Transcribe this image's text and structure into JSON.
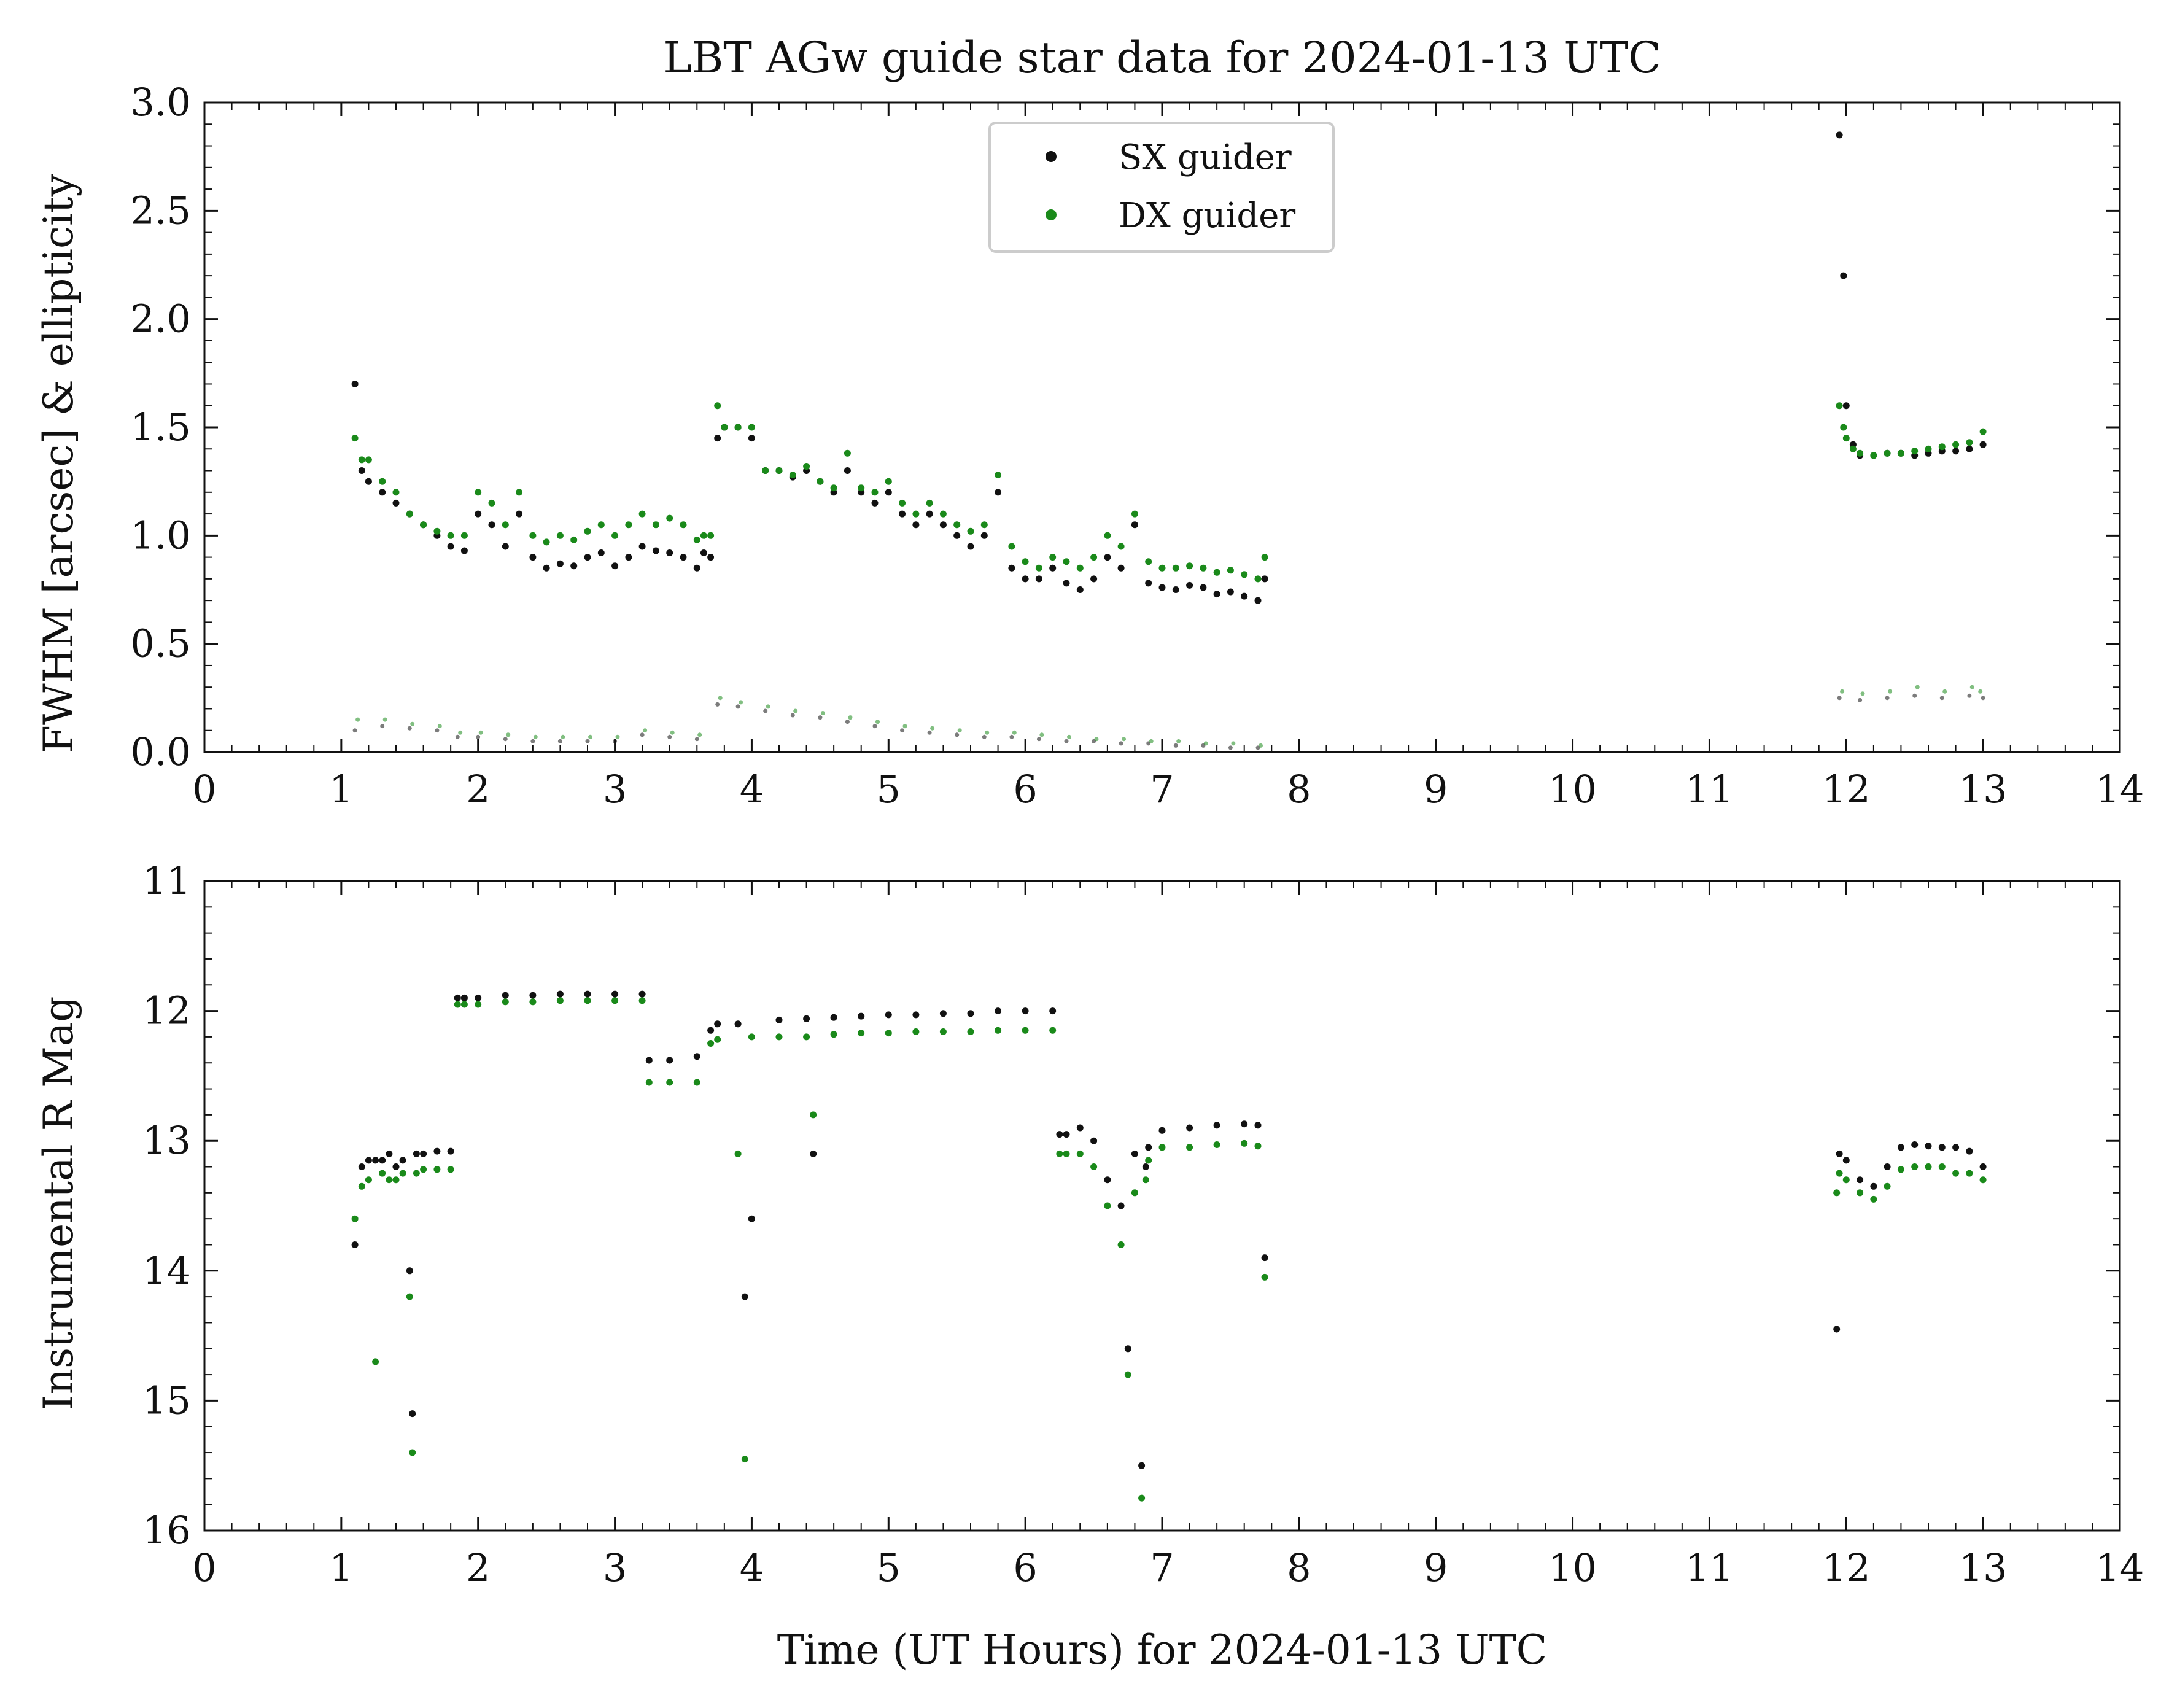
{
  "title": "LBT AGw guide star data for 2024-01-13 UTC",
  "xlabel": "Time (UT Hours) for 2024-01-13 UTC",
  "colors": {
    "sx": "#111111",
    "dx": "#1a8a1a",
    "axis": "#111111"
  },
  "legend": {
    "placement": "top-center",
    "items": [
      "SX guider",
      "DX guider"
    ]
  },
  "chart_data": [
    {
      "type": "scatter",
      "ylabel": "FWHM [arcsec] & ellipticity",
      "xlim": [
        0,
        14
      ],
      "ylim": [
        0,
        3.0
      ],
      "y_inverted": false,
      "xticks": [
        "0",
        "1",
        "2",
        "3",
        "4",
        "5",
        "6",
        "7",
        "8",
        "9",
        "10",
        "11",
        "12",
        "13",
        "14"
      ],
      "yticks": [
        "0.0",
        "0.5",
        "1.0",
        "1.5",
        "2.0",
        "2.5",
        "3.0"
      ],
      "series": [
        {
          "name": "SX guider",
          "key": "sx",
          "quantity": "fwhm",
          "x": [
            1.1,
            1.15,
            1.2,
            1.3,
            1.4,
            1.5,
            1.6,
            1.7,
            1.8,
            1.9,
            2.0,
            2.1,
            2.2,
            2.3,
            2.4,
            2.5,
            2.6,
            2.7,
            2.8,
            2.9,
            3.0,
            3.1,
            3.2,
            3.3,
            3.4,
            3.5,
            3.6,
            3.65,
            3.7,
            3.75,
            3.8,
            3.9,
            4.0,
            4.1,
            4.2,
            4.3,
            4.4,
            4.5,
            4.6,
            4.7,
            4.8,
            4.9,
            5.0,
            5.1,
            5.2,
            5.3,
            5.4,
            5.5,
            5.6,
            5.7,
            5.8,
            5.9,
            6.0,
            6.1,
            6.2,
            6.3,
            6.4,
            6.5,
            6.6,
            6.7,
            6.8,
            6.9,
            7.0,
            7.1,
            7.2,
            7.3,
            7.4,
            7.5,
            7.6,
            7.7,
            7.75,
            11.95,
            11.98,
            12.0,
            12.05,
            12.1,
            12.2,
            12.3,
            12.4,
            12.5,
            12.6,
            12.7,
            12.8,
            12.9,
            13.0
          ],
          "y": [
            1.7,
            1.3,
            1.25,
            1.2,
            1.15,
            1.1,
            1.05,
            1.0,
            0.95,
            0.93,
            1.1,
            1.05,
            0.95,
            1.1,
            0.9,
            0.85,
            0.87,
            0.86,
            0.9,
            0.92,
            0.86,
            0.9,
            0.95,
            0.93,
            0.92,
            0.9,
            0.85,
            0.92,
            0.9,
            1.45,
            1.5,
            1.5,
            1.45,
            1.3,
            1.3,
            1.27,
            1.3,
            1.25,
            1.2,
            1.3,
            1.2,
            1.15,
            1.2,
            1.1,
            1.05,
            1.1,
            1.05,
            1.0,
            0.95,
            1.0,
            1.2,
            0.85,
            0.8,
            0.8,
            0.85,
            0.78,
            0.75,
            0.8,
            0.9,
            0.85,
            1.05,
            0.78,
            0.76,
            0.75,
            0.77,
            0.76,
            0.73,
            0.74,
            0.72,
            0.7,
            0.8,
            2.85,
            2.2,
            1.6,
            1.42,
            1.37,
            1.37,
            1.38,
            1.38,
            1.37,
            1.38,
            1.39,
            1.39,
            1.4,
            1.42
          ]
        },
        {
          "name": "DX guider",
          "key": "dx",
          "quantity": "fwhm",
          "x": [
            1.1,
            1.15,
            1.2,
            1.3,
            1.4,
            1.5,
            1.6,
            1.7,
            1.8,
            1.9,
            2.0,
            2.1,
            2.2,
            2.3,
            2.4,
            2.5,
            2.6,
            2.7,
            2.8,
            2.9,
            3.0,
            3.1,
            3.2,
            3.3,
            3.4,
            3.5,
            3.6,
            3.65,
            3.7,
            3.75,
            3.8,
            3.9,
            4.0,
            4.1,
            4.2,
            4.3,
            4.4,
            4.5,
            4.6,
            4.7,
            4.8,
            4.9,
            5.0,
            5.1,
            5.2,
            5.3,
            5.4,
            5.5,
            5.6,
            5.7,
            5.8,
            5.9,
            6.0,
            6.1,
            6.2,
            6.3,
            6.4,
            6.5,
            6.6,
            6.7,
            6.8,
            6.9,
            7.0,
            7.1,
            7.2,
            7.3,
            7.4,
            7.5,
            7.6,
            7.7,
            7.75,
            11.95,
            11.98,
            12.0,
            12.05,
            12.1,
            12.2,
            12.3,
            12.4,
            12.5,
            12.6,
            12.7,
            12.8,
            12.9,
            13.0
          ],
          "y": [
            1.45,
            1.35,
            1.35,
            1.25,
            1.2,
            1.1,
            1.05,
            1.02,
            1.0,
            1.0,
            1.2,
            1.15,
            1.05,
            1.2,
            1.0,
            0.97,
            1.0,
            0.98,
            1.02,
            1.05,
            1.0,
            1.05,
            1.1,
            1.05,
            1.08,
            1.05,
            0.98,
            1.0,
            1.0,
            1.6,
            1.5,
            1.5,
            1.5,
            1.3,
            1.3,
            1.28,
            1.32,
            1.25,
            1.22,
            1.38,
            1.22,
            1.2,
            1.25,
            1.15,
            1.1,
            1.15,
            1.1,
            1.05,
            1.02,
            1.05,
            1.28,
            0.95,
            0.88,
            0.85,
            0.9,
            0.88,
            0.85,
            0.9,
            1.0,
            0.95,
            1.1,
            0.88,
            0.85,
            0.85,
            0.86,
            0.85,
            0.83,
            0.84,
            0.82,
            0.8,
            0.9,
            1.6,
            1.5,
            1.45,
            1.4,
            1.38,
            1.37,
            1.38,
            1.38,
            1.39,
            1.4,
            1.41,
            1.42,
            1.43,
            1.48
          ]
        },
        {
          "name": "SX guider",
          "key": "sx",
          "quantity": "ellipticity",
          "x": [
            1.1,
            1.3,
            1.5,
            1.7,
            1.85,
            2.0,
            2.2,
            2.4,
            2.6,
            2.8,
            3.0,
            3.2,
            3.4,
            3.6,
            3.75,
            3.9,
            4.1,
            4.3,
            4.5,
            4.7,
            4.9,
            5.1,
            5.3,
            5.5,
            5.7,
            5.9,
            6.1,
            6.3,
            6.5,
            6.7,
            6.9,
            7.1,
            7.3,
            7.5,
            7.7,
            11.95,
            12.1,
            12.3,
            12.5,
            12.7,
            12.9,
            13.0
          ],
          "y": [
            0.1,
            0.12,
            0.11,
            0.1,
            0.07,
            0.07,
            0.06,
            0.05,
            0.05,
            0.05,
            0.05,
            0.08,
            0.07,
            0.06,
            0.22,
            0.21,
            0.19,
            0.17,
            0.16,
            0.14,
            0.12,
            0.1,
            0.09,
            0.08,
            0.07,
            0.07,
            0.06,
            0.05,
            0.05,
            0.04,
            0.04,
            0.03,
            0.03,
            0.02,
            0.02,
            0.25,
            0.24,
            0.25,
            0.26,
            0.25,
            0.26,
            0.25
          ]
        },
        {
          "name": "DX guider",
          "key": "dx",
          "quantity": "ellipticity",
          "x": [
            1.12,
            1.32,
            1.52,
            1.72,
            1.87,
            2.02,
            2.22,
            2.42,
            2.62,
            2.82,
            3.02,
            3.22,
            3.42,
            3.62,
            3.77,
            3.92,
            4.12,
            4.32,
            4.52,
            4.72,
            4.92,
            5.12,
            5.32,
            5.52,
            5.72,
            5.92,
            6.12,
            6.32,
            6.52,
            6.72,
            6.92,
            7.12,
            7.32,
            7.52,
            7.72,
            11.97,
            12.12,
            12.32,
            12.52,
            12.72,
            12.92,
            12.98
          ],
          "y": [
            0.15,
            0.15,
            0.13,
            0.12,
            0.09,
            0.09,
            0.08,
            0.07,
            0.07,
            0.07,
            0.07,
            0.1,
            0.09,
            0.08,
            0.25,
            0.23,
            0.21,
            0.19,
            0.18,
            0.16,
            0.14,
            0.12,
            0.11,
            0.1,
            0.09,
            0.09,
            0.08,
            0.07,
            0.06,
            0.06,
            0.05,
            0.05,
            0.04,
            0.04,
            0.03,
            0.28,
            0.27,
            0.28,
            0.3,
            0.28,
            0.3,
            0.28
          ]
        }
      ]
    },
    {
      "type": "scatter",
      "ylabel": "Instrumental R Mag",
      "xlabel": "Time (UT Hours) for 2024-01-13 UTC",
      "xlim": [
        0,
        14
      ],
      "ylim": [
        16,
        11
      ],
      "y_inverted": true,
      "xticks": [
        "0",
        "1",
        "2",
        "3",
        "4",
        "5",
        "6",
        "7",
        "8",
        "9",
        "10",
        "11",
        "12",
        "13",
        "14"
      ],
      "yticks": [
        "11",
        "12",
        "13",
        "14",
        "15",
        "16"
      ],
      "series": [
        {
          "name": "SX guider",
          "key": "sx",
          "x": [
            1.1,
            1.15,
            1.2,
            1.25,
            1.3,
            1.35,
            1.4,
            1.45,
            1.5,
            1.52,
            1.55,
            1.6,
            1.7,
            1.8,
            1.85,
            1.9,
            2.0,
            2.2,
            2.4,
            2.6,
            2.8,
            3.0,
            3.2,
            3.25,
            3.4,
            3.6,
            3.7,
            3.75,
            3.9,
            3.95,
            4.0,
            4.2,
            4.4,
            4.45,
            4.6,
            4.8,
            5.0,
            5.2,
            5.4,
            5.6,
            5.8,
            6.0,
            6.2,
            6.25,
            6.3,
            6.4,
            6.5,
            6.6,
            6.7,
            6.75,
            6.8,
            6.85,
            6.88,
            6.9,
            7.0,
            7.2,
            7.4,
            7.6,
            7.7,
            7.75,
            11.93,
            11.95,
            12.0,
            12.1,
            12.2,
            12.3,
            12.4,
            12.5,
            12.6,
            12.7,
            12.8,
            12.9,
            13.0
          ],
          "y": [
            13.8,
            13.2,
            13.15,
            13.15,
            13.15,
            13.1,
            13.2,
            13.15,
            14.0,
            15.1,
            13.1,
            13.1,
            13.08,
            13.08,
            11.9,
            11.9,
            11.9,
            11.88,
            11.88,
            11.87,
            11.87,
            11.87,
            11.87,
            12.38,
            12.38,
            12.35,
            12.15,
            12.1,
            12.1,
            14.2,
            13.6,
            12.07,
            12.06,
            13.1,
            12.05,
            12.04,
            12.03,
            12.03,
            12.02,
            12.02,
            12.0,
            12.0,
            12.0,
            12.95,
            12.95,
            12.9,
            13.0,
            13.3,
            13.5,
            14.6,
            13.1,
            15.5,
            13.2,
            13.05,
            12.92,
            12.9,
            12.88,
            12.87,
            12.88,
            13.9,
            14.45,
            13.1,
            13.15,
            13.3,
            13.35,
            13.2,
            13.05,
            13.03,
            13.04,
            13.05,
            13.05,
            13.08,
            13.2
          ]
        },
        {
          "name": "DX guider",
          "key": "dx",
          "x": [
            1.1,
            1.15,
            1.2,
            1.25,
            1.3,
            1.35,
            1.4,
            1.45,
            1.5,
            1.52,
            1.55,
            1.6,
            1.7,
            1.8,
            1.85,
            1.9,
            2.0,
            2.2,
            2.4,
            2.6,
            2.8,
            3.0,
            3.2,
            3.25,
            3.4,
            3.6,
            3.7,
            3.75,
            3.9,
            3.95,
            4.0,
            4.2,
            4.4,
            4.45,
            4.6,
            4.8,
            5.0,
            5.2,
            5.4,
            5.6,
            5.8,
            6.0,
            6.2,
            6.25,
            6.3,
            6.4,
            6.5,
            6.6,
            6.7,
            6.75,
            6.8,
            6.85,
            6.88,
            6.9,
            7.0,
            7.2,
            7.4,
            7.6,
            7.7,
            7.75,
            11.93,
            11.95,
            12.0,
            12.1,
            12.2,
            12.3,
            12.4,
            12.5,
            12.6,
            12.7,
            12.8,
            12.9,
            13.0
          ],
          "y": [
            13.6,
            13.35,
            13.3,
            14.7,
            13.25,
            13.3,
            13.3,
            13.25,
            14.2,
            15.4,
            13.25,
            13.22,
            13.22,
            13.22,
            11.95,
            11.95,
            11.95,
            11.93,
            11.93,
            11.92,
            11.92,
            11.92,
            11.92,
            12.55,
            12.55,
            12.55,
            12.25,
            12.22,
            13.1,
            15.45,
            12.2,
            12.2,
            12.2,
            12.8,
            12.18,
            12.17,
            12.17,
            12.16,
            12.16,
            12.16,
            12.15,
            12.15,
            12.15,
            13.1,
            13.1,
            13.1,
            13.2,
            13.5,
            13.8,
            14.8,
            13.4,
            15.75,
            13.3,
            13.15,
            13.05,
            13.05,
            13.03,
            13.02,
            13.04,
            14.05,
            13.4,
            13.25,
            13.3,
            13.4,
            13.45,
            13.35,
            13.22,
            13.2,
            13.2,
            13.2,
            13.25,
            13.25,
            13.3
          ]
        }
      ]
    }
  ]
}
